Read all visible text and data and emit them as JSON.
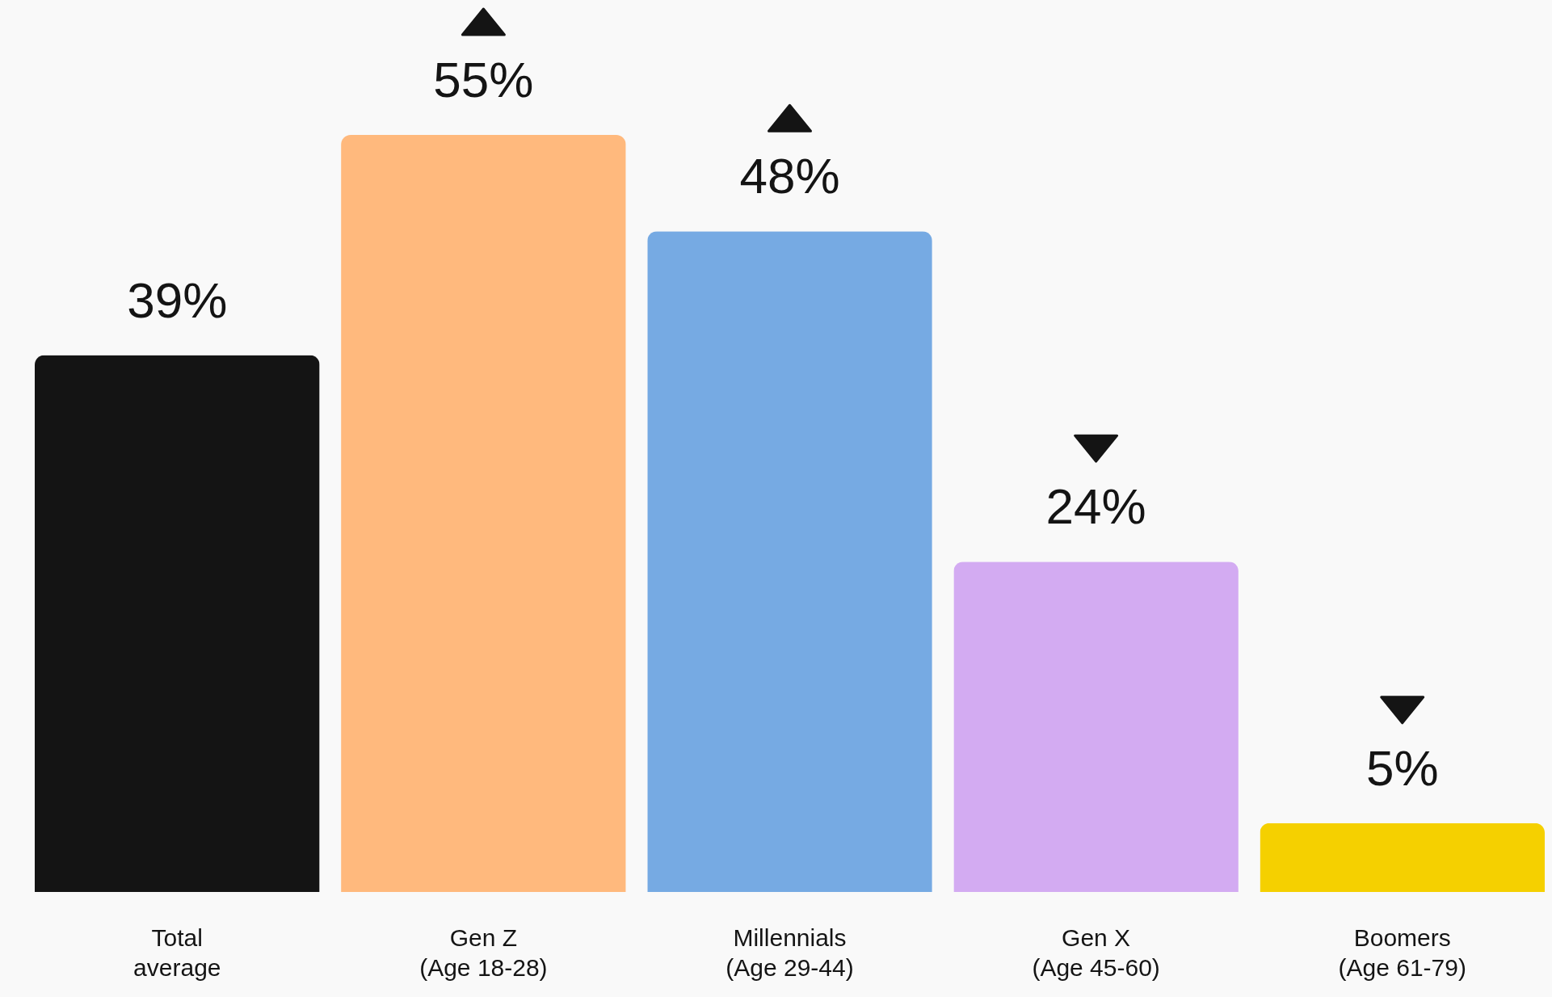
{
  "chart_data": {
    "type": "bar",
    "categories": [
      "Total\naverage",
      "Gen Z\n(Age 18-28)",
      "Millennials\n(Age 29-44)",
      "Gen X\n(Age 45-60)",
      "Boomers\n(Age 61-79)"
    ],
    "values": [
      39,
      55,
      48,
      24,
      5
    ],
    "colors": [
      "#141414",
      "#ffb97d",
      "#76aae3",
      "#d3abf2",
      "#f5d000"
    ],
    "value_labels": [
      "39%",
      "55%",
      "48%",
      "24%",
      "5%"
    ]
  }
}
